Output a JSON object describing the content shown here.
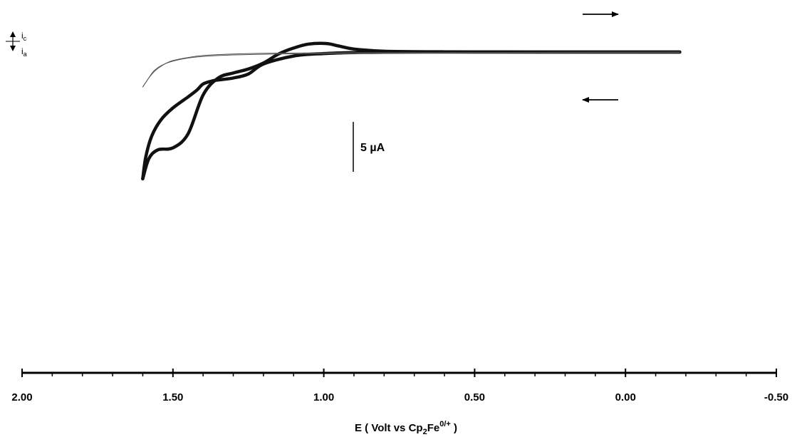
{
  "chart_data": {
    "type": "line",
    "title": "",
    "xlabel": {
      "prefix": "E ( Volt vs Cp",
      "sub": "2",
      "main": "Fe",
      "sup": "0/+",
      "suffix": " )"
    },
    "ylabel": "",
    "xlim": [
      2.0,
      -0.5
    ],
    "x_ticks": [
      2.0,
      1.5,
      1.0,
      0.5,
      0.0,
      -0.5
    ],
    "x_tick_labels": [
      "2.00",
      "1.50",
      "1.00",
      "0.50",
      "0.00",
      "-0.50"
    ],
    "current_scale_label": "5 µA",
    "current_scale_uA": 5,
    "current_direction": {
      "cathodic_label": "i",
      "cathodic_sub": "c",
      "anodic_label": "i",
      "anodic_sub": "a"
    },
    "grid": false,
    "legend": "none",
    "series": [
      {
        "style": "bold",
        "description_key": "sample-forward",
        "x": [
          -0.18,
          0.0,
          0.2,
          0.4,
          0.6,
          0.8,
          0.9,
          0.95,
          0.99,
          1.05,
          1.1,
          1.15,
          1.2,
          1.25,
          1.3,
          1.35,
          1.4,
          1.45,
          1.5,
          1.55,
          1.58,
          1.6
        ],
        "y": [
          0.0,
          0.0,
          0.0,
          -0.01,
          -0.02,
          -0.08,
          -0.3,
          -0.6,
          -0.85,
          -0.8,
          -0.4,
          0.2,
          1.1,
          1.7,
          2.1,
          2.6,
          4.3,
          8.2,
          9.6,
          9.8,
          10.7,
          12.7
        ]
      },
      {
        "style": "bold",
        "description_key": "sample-reverse",
        "x": [
          1.6,
          1.59,
          1.57,
          1.54,
          1.5,
          1.45,
          1.42,
          1.4,
          1.37,
          1.35,
          1.3,
          1.25,
          1.2,
          1.1,
          1.0,
          0.9,
          0.8,
          0.6,
          0.4,
          0.2,
          0.0,
          -0.18
        ],
        "y": [
          12.7,
          10.5,
          8.4,
          6.8,
          5.6,
          4.5,
          3.8,
          3.2,
          2.9,
          2.8,
          2.6,
          2.2,
          1.2,
          0.4,
          0.15,
          0.05,
          0.02,
          0.0,
          0.0,
          0.0,
          0.0,
          0.0
        ]
      },
      {
        "style": "thin",
        "description_key": "blank-forward",
        "x": [
          -0.18,
          0.2,
          0.6,
          1.0,
          1.2,
          1.35,
          1.45,
          1.52,
          1.56,
          1.58,
          1.6
        ],
        "y": [
          0.05,
          0.07,
          0.1,
          0.15,
          0.22,
          0.35,
          0.6,
          1.1,
          1.8,
          2.6,
          3.5
        ]
      },
      {
        "style": "thin",
        "description_key": "blank-reverse",
        "x": [
          1.6,
          1.58,
          1.56,
          1.53,
          1.5,
          1.45,
          1.4,
          1.3,
          1.2,
          1.0,
          0.6,
          0.2,
          -0.18
        ],
        "y": [
          3.5,
          2.6,
          1.9,
          1.25,
          0.85,
          0.55,
          0.35,
          0.2,
          0.12,
          0.08,
          0.05,
          0.02,
          0.0
        ]
      }
    ],
    "sweep_arrows": [
      {
        "direction": "right",
        "note": "upper"
      },
      {
        "direction": "left",
        "note": "lower"
      }
    ]
  }
}
